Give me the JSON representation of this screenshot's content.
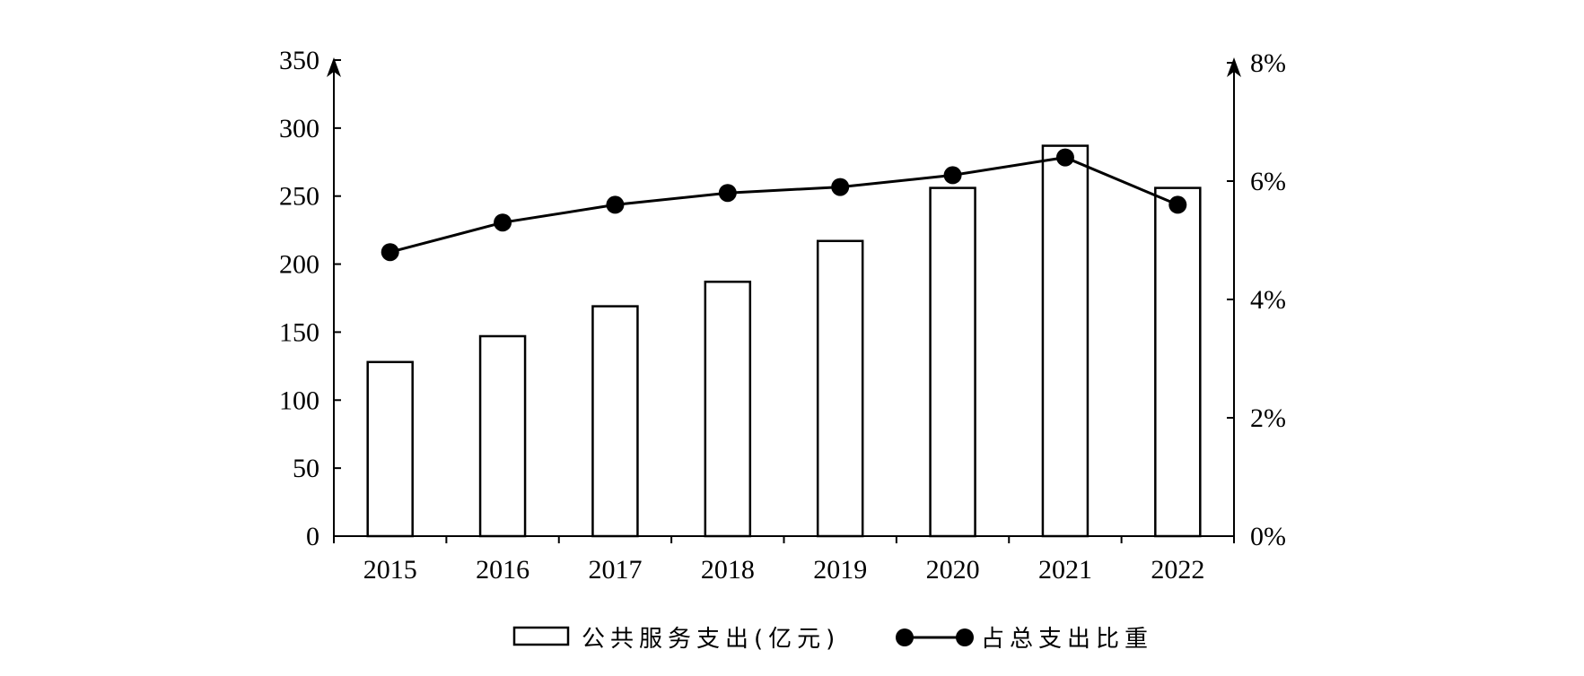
{
  "chart_data": {
    "type": "bar",
    "categories": [
      "2015",
      "2016",
      "2017",
      "2018",
      "2019",
      "2020",
      "2021",
      "2022"
    ],
    "series": [
      {
        "name": "公共服务支出(亿元)",
        "type": "bar",
        "axis": "left",
        "values": [
          128,
          147,
          169,
          187,
          217,
          256,
          287,
          256
        ]
      },
      {
        "name": "占总支出比重",
        "type": "line",
        "axis": "right",
        "values": [
          4.8,
          5.3,
          5.6,
          5.8,
          5.9,
          6.1,
          6.4,
          5.6
        ]
      }
    ],
    "left_axis": {
      "ylim": [
        0,
        350
      ],
      "ticks": [
        0,
        50,
        100,
        150,
        200,
        250,
        300,
        350
      ],
      "tick_labels": [
        "0",
        "50",
        "100",
        "150",
        "200",
        "250",
        "300",
        "350"
      ]
    },
    "right_axis": {
      "ylim": [
        0,
        8
      ],
      "ticks": [
        0,
        2,
        4,
        6,
        8
      ],
      "tick_labels": [
        "0%",
        "2%",
        "4%",
        "6%",
        "8%"
      ]
    },
    "grid": false,
    "legend": {
      "position": "bottom-center",
      "items": [
        "公共服务支出(亿元)",
        "占总支出比重"
      ]
    }
  }
}
